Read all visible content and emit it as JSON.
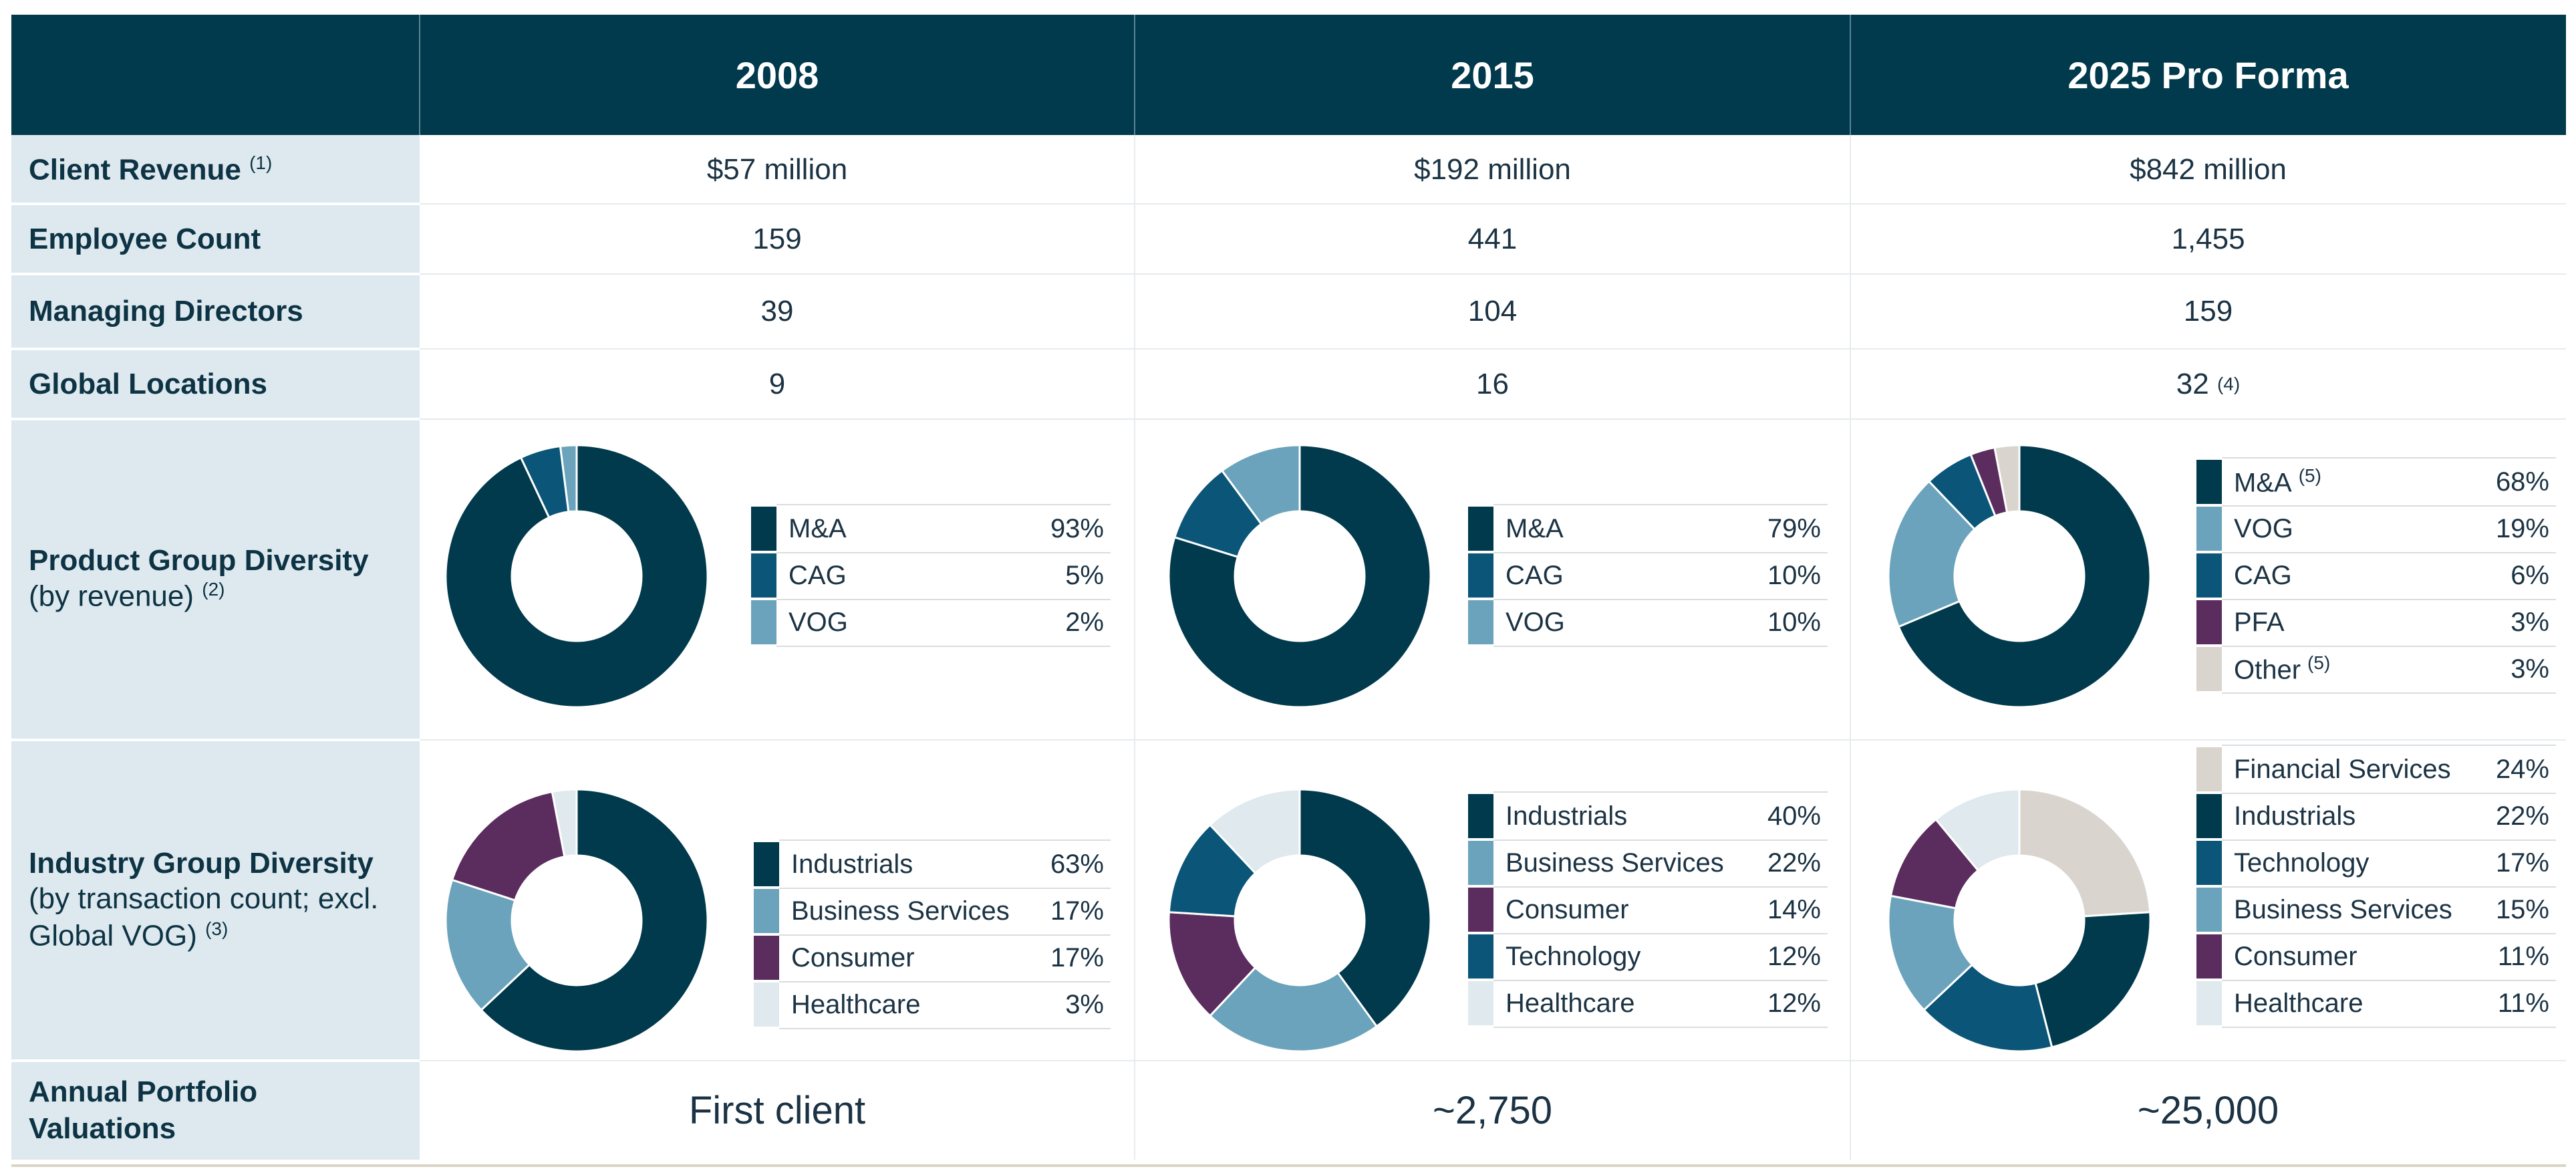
{
  "columns": [
    "2008",
    "2015",
    "2025 Pro Forma"
  ],
  "rows": {
    "client_revenue": {
      "label": "Client Revenue",
      "note": "(1)",
      "values": [
        "$57 million",
        "$192 million",
        "$842 million"
      ]
    },
    "employee_count": {
      "label": "Employee Count",
      "values": [
        "159",
        "441",
        "1,455"
      ]
    },
    "managing_directors": {
      "label": "Managing Directors",
      "values": [
        "39",
        "104",
        "159"
      ]
    },
    "global_locations": {
      "label": "Global Locations",
      "values": [
        "9",
        "16",
        "32"
      ],
      "value_notes": [
        "",
        "",
        "(4)"
      ]
    },
    "product_group": {
      "label": "Product Group Diversity",
      "sublabel": "(by revenue)",
      "note": "(2)"
    },
    "industry_group": {
      "label": "Industry Group Diversity",
      "sublabel": "(by transaction count; excl. Global VOG)",
      "note": "(3)"
    },
    "annual_valuations": {
      "label": "Annual Portfolio Valuations",
      "values": [
        "First client",
        "~2,750",
        "~25,000"
      ]
    }
  },
  "colors": {
    "header_bg": "#003a4c",
    "label_bg": "#dde9ee",
    "dark_teal": "#003a4c",
    "mid_blue": "#0a5578",
    "light_blue": "#6aa3bb",
    "purple": "#5b2c5e",
    "beige": "#d9d4ce",
    "pale_blue": "#dfe9ee"
  },
  "chart_data": [
    {
      "type": "pie",
      "title": "Product Group Diversity 2008",
      "series": [
        {
          "name": "M&A",
          "value": 93,
          "label": "93%",
          "color": "#003a4c"
        },
        {
          "name": "CAG",
          "value": 5,
          "label": "5%",
          "color": "#0a5578"
        },
        {
          "name": "VOG",
          "value": 2,
          "label": "2%",
          "color": "#6aa3bb"
        }
      ]
    },
    {
      "type": "pie",
      "title": "Product Group Diversity 2015",
      "series": [
        {
          "name": "M&A",
          "value": 79,
          "label": "79%",
          "color": "#003a4c"
        },
        {
          "name": "CAG",
          "value": 10,
          "label": "10%",
          "color": "#0a5578"
        },
        {
          "name": "VOG",
          "value": 10,
          "label": "10%",
          "color": "#6aa3bb"
        }
      ]
    },
    {
      "type": "pie",
      "title": "Product Group Diversity 2025 Pro Forma",
      "series": [
        {
          "name": "M&A",
          "note": "(5)",
          "value": 68,
          "label": "68%",
          "color": "#003a4c"
        },
        {
          "name": "VOG",
          "value": 19,
          "label": "19%",
          "color": "#6aa3bb"
        },
        {
          "name": "CAG",
          "value": 6,
          "label": "6%",
          "color": "#0a5578"
        },
        {
          "name": "PFA",
          "value": 3,
          "label": "3%",
          "color": "#5b2c5e"
        },
        {
          "name": "Other",
          "note": "(5)",
          "value": 3,
          "label": "3%",
          "color": "#d9d4ce"
        }
      ]
    },
    {
      "type": "pie",
      "title": "Industry Group Diversity 2008",
      "series": [
        {
          "name": "Industrials",
          "value": 63,
          "label": "63%",
          "color": "#003a4c"
        },
        {
          "name": "Business Services",
          "value": 17,
          "label": "17%",
          "color": "#6aa3bb"
        },
        {
          "name": "Consumer",
          "value": 17,
          "label": "17%",
          "color": "#5b2c5e"
        },
        {
          "name": "Healthcare",
          "value": 3,
          "label": "3%",
          "color": "#dfe9ee"
        }
      ]
    },
    {
      "type": "pie",
      "title": "Industry Group Diversity 2015",
      "series": [
        {
          "name": "Industrials",
          "value": 40,
          "label": "40%",
          "color": "#003a4c"
        },
        {
          "name": "Business Services",
          "value": 22,
          "label": "22%",
          "color": "#6aa3bb"
        },
        {
          "name": "Consumer",
          "value": 14,
          "label": "14%",
          "color": "#5b2c5e"
        },
        {
          "name": "Technology",
          "value": 12,
          "label": "12%",
          "color": "#0a5578"
        },
        {
          "name": "Healthcare",
          "value": 12,
          "label": "12%",
          "color": "#dfe9ee"
        }
      ]
    },
    {
      "type": "pie",
      "title": "Industry Group Diversity 2025 Pro Forma",
      "series": [
        {
          "name": "Financial Services",
          "value": 24,
          "label": "24%",
          "color": "#d9d4ce"
        },
        {
          "name": "Industrials",
          "value": 22,
          "label": "22%",
          "color": "#003a4c"
        },
        {
          "name": "Technology",
          "value": 17,
          "label": "17%",
          "color": "#0a5578"
        },
        {
          "name": "Business Services",
          "value": 15,
          "label": "15%",
          "color": "#6aa3bb"
        },
        {
          "name": "Consumer",
          "value": 11,
          "label": "11%",
          "color": "#5b2c5e"
        },
        {
          "name": "Healthcare",
          "value": 11,
          "label": "11%",
          "color": "#dfe9ee"
        }
      ]
    }
  ]
}
